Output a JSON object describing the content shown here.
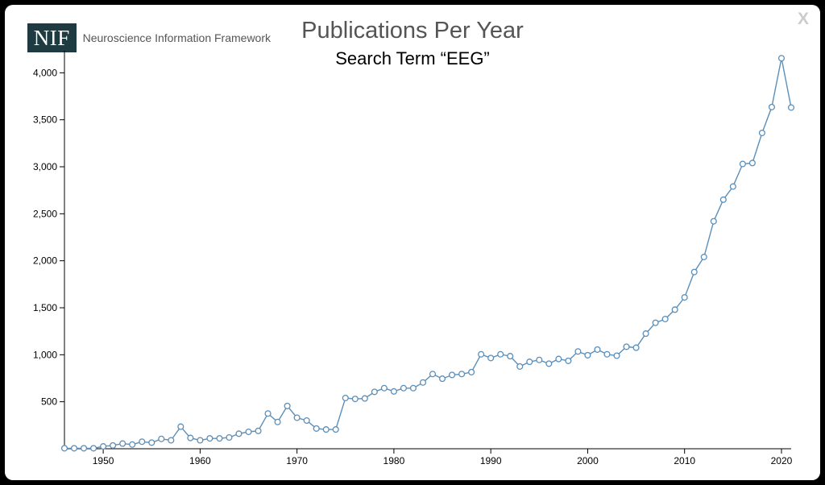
{
  "header": {
    "logo_mark": "NIF",
    "logo_text": "Neuroscience Information Framework",
    "close_label": "X"
  },
  "chart_data": {
    "type": "line",
    "title": "Publications Per Year",
    "subtitle": "Search Term “EEG”",
    "xlabel": "",
    "ylabel": "",
    "xlim": [
      1946,
      2021
    ],
    "ylim": [
      0,
      4200
    ],
    "x_ticks": [
      1950,
      1960,
      1970,
      1980,
      1990,
      2000,
      2010,
      2020
    ],
    "y_ticks": [
      500,
      1000,
      1500,
      2000,
      2500,
      3000,
      3500,
      4000
    ],
    "y_tick_labels": [
      "500",
      "1,000",
      "1,500",
      "2,000",
      "2,500",
      "3,000",
      "3,500",
      "4,000"
    ],
    "grid": false,
    "line_color": "#5b8fb9",
    "x": [
      1946,
      1947,
      1948,
      1949,
      1950,
      1951,
      1952,
      1953,
      1954,
      1955,
      1956,
      1957,
      1958,
      1959,
      1960,
      1961,
      1962,
      1963,
      1964,
      1965,
      1966,
      1967,
      1968,
      1969,
      1970,
      1971,
      1972,
      1973,
      1974,
      1975,
      1976,
      1977,
      1978,
      1979,
      1980,
      1981,
      1982,
      1983,
      1984,
      1985,
      1986,
      1987,
      1988,
      1989,
      1990,
      1991,
      1992,
      1993,
      1994,
      1995,
      1996,
      1997,
      1998,
      1999,
      2000,
      2001,
      2002,
      2003,
      2004,
      2005,
      2006,
      2007,
      2008,
      2009,
      2010,
      2011,
      2012,
      2013,
      2014,
      2015,
      2016,
      2017,
      2018,
      2019,
      2020,
      2021
    ],
    "y": [
      5,
      5,
      5,
      5,
      25,
      35,
      55,
      45,
      75,
      65,
      105,
      90,
      235,
      115,
      90,
      110,
      110,
      120,
      160,
      180,
      190,
      375,
      285,
      455,
      330,
      300,
      215,
      205,
      205,
      540,
      530,
      535,
      605,
      645,
      610,
      645,
      645,
      705,
      795,
      745,
      785,
      795,
      815,
      1005,
      965,
      1005,
      985,
      875,
      925,
      945,
      905,
      955,
      935,
      1035,
      995,
      1055,
      1005,
      990,
      1085,
      1075,
      1225,
      1340,
      1380,
      1480,
      1610,
      1880,
      2040,
      2420,
      2650,
      2790,
      3030,
      3040,
      3360,
      3635,
      4155,
      3630
    ]
  }
}
